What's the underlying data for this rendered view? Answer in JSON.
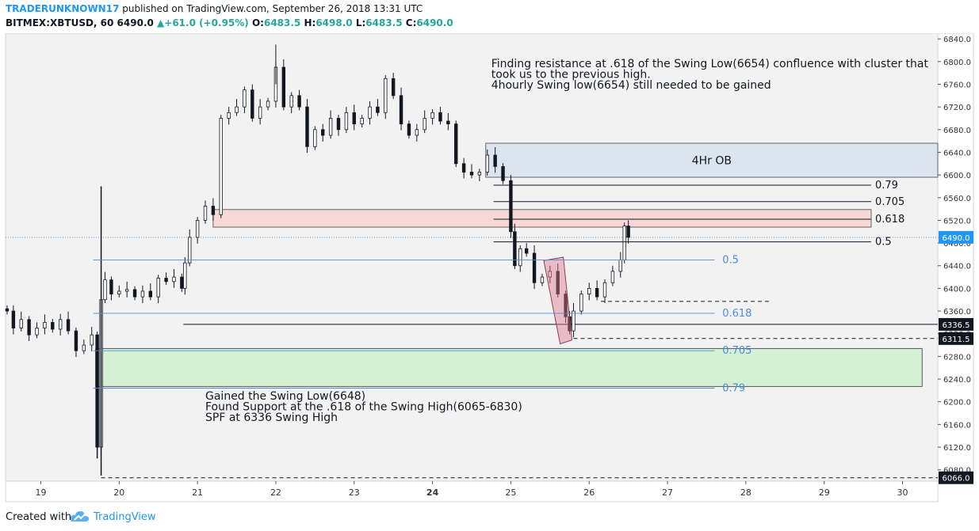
{
  "header": {
    "author": "TRADERUNKNOWN17",
    "published_text": "published on TradingView.com, September 26, 2018 13:31 UTC",
    "symbol": "BITMEX:XBTUSD, 60",
    "last": "6490.0",
    "change": "+61.0 (+0.95%)",
    "o_label": "O:",
    "o": "6483.5",
    "h_label": "H:",
    "h": "6498.0",
    "l_label": "L:",
    "l": "6483.5",
    "c_label": "C:",
    "c": "6490.0"
  },
  "footer": {
    "created_with": "Created with",
    "brand": "TradingView"
  },
  "colors": {
    "up": "#26a69a",
    "down": "#131722",
    "author": "#2196f3",
    "fib_blue": "#4f8bdc",
    "ob_fill": "#dce4f0",
    "red_fill": "#f8d7d7",
    "green_fill": "#d4f1d4",
    "price_tag": "#2196f3"
  },
  "chart_data": {
    "type": "candlestick",
    "title": "BITMEX:XBTUSD, 60",
    "ylim": [
      6060,
      6850
    ],
    "y_ticks": [
      6080,
      6120,
      6160,
      6200,
      6240,
      6280,
      6320,
      6360,
      6400,
      6440,
      6480,
      6520,
      6560,
      6600,
      6640,
      6680,
      6720,
      6760,
      6800,
      6840
    ],
    "x_ticks": [
      {
        "label": "19",
        "day": 19
      },
      {
        "label": "20",
        "day": 20
      },
      {
        "label": "21",
        "day": 21
      },
      {
        "label": "22",
        "day": 22
      },
      {
        "label": "23",
        "day": 23
      },
      {
        "label": "24",
        "day": 24,
        "bold": true
      },
      {
        "label": "25",
        "day": 25
      },
      {
        "label": "26",
        "day": 26
      },
      {
        "label": "27",
        "day": 27
      },
      {
        "label": "28",
        "day": 28
      },
      {
        "label": "29",
        "day": 29
      },
      {
        "label": "30",
        "day": 30
      }
    ],
    "x_range_days": [
      18.55,
      30.45
    ],
    "price_tags": [
      {
        "label": "6490.0",
        "value": 6490,
        "style": "blue"
      },
      {
        "label": "6336.5",
        "value": 6336.5,
        "style": "dark"
      },
      {
        "label": "6311.5",
        "value": 6311.5,
        "style": "dark"
      },
      {
        "label": "6066.0",
        "value": 6066,
        "style": "dark"
      }
    ],
    "zones": [
      {
        "name": "4Hr OB",
        "x1": 24.68,
        "x2": 30.45,
        "y1": 6596,
        "y2": 6656,
        "kind": "ob"
      },
      {
        "name": "",
        "x1": 21.2,
        "x2": 29.6,
        "y1": 6508,
        "y2": 6539,
        "kind": "red"
      },
      {
        "name": "",
        "x1": 19.7,
        "x2": 30.25,
        "y1": 6227,
        "y2": 6294,
        "kind": "green"
      }
    ],
    "zone_labels": [
      "4Hr OB"
    ],
    "fib_black": [
      {
        "label": "0.79",
        "value": 6582
      },
      {
        "label": "0.705",
        "value": 6553
      },
      {
        "label": "0.618",
        "value": 6522
      },
      {
        "label": "0.5",
        "value": 6482
      }
    ],
    "fib_blue": [
      {
        "label": "0.5",
        "value": 6450
      },
      {
        "label": "0.618",
        "value": 6356
      },
      {
        "label": "0.705",
        "value": 6290
      },
      {
        "label": "0.79",
        "value": 6224
      }
    ],
    "horizontal_lines": [
      {
        "value": 6336.5,
        "x1": 20.82,
        "style": "solid"
      },
      {
        "value": 6311.5,
        "x1": 25.8,
        "style": "dashed"
      },
      {
        "value": 6066,
        "x1": 19.77,
        "style": "dashed"
      },
      {
        "value": 6377,
        "x1": 26.15,
        "x2": 28.3,
        "style": "dashed"
      }
    ],
    "annotations": [
      {
        "text": "Finding resistance at .618 of the Swing Low(6654) confluence with cluster that",
        "x": 24.75,
        "y": 6790
      },
      {
        "text": "took us to the previous high.",
        "x": 24.75,
        "y": 6771
      },
      {
        "text": "4hourly Swing low(6654) still needed to be gained",
        "x": 24.75,
        "y": 6752
      },
      {
        "text": "Gained the Swing Low(6648)",
        "x": 21.1,
        "y": 6204
      },
      {
        "text": "Found Support at the .618 of the Swing High(6065-6830)",
        "x": 21.1,
        "y": 6185
      },
      {
        "text": "SPF at 6336 Swing High",
        "x": 21.1,
        "y": 6166
      }
    ],
    "pattern_box": {
      "p1": [
        25.42,
        6449
      ],
      "p2": [
        25.67,
        6455
      ],
      "p3": [
        25.78,
        6309
      ],
      "p4": [
        25.63,
        6302
      ]
    },
    "series_close": [
      {
        "d": 18.57,
        "c": 6360
      },
      {
        "d": 18.65,
        "c": 6330
      },
      {
        "d": 18.75,
        "c": 6345
      },
      {
        "d": 18.85,
        "c": 6318
      },
      {
        "d": 18.95,
        "c": 6330
      },
      {
        "d": 19.05,
        "c": 6340
      },
      {
        "d": 19.15,
        "c": 6328
      },
      {
        "d": 19.25,
        "c": 6345
      },
      {
        "d": 19.35,
        "c": 6325
      },
      {
        "d": 19.45,
        "c": 6290
      },
      {
        "d": 19.55,
        "c": 6300
      },
      {
        "d": 19.65,
        "c": 6318
      },
      {
        "d": 19.72,
        "c": 6120
      },
      {
        "d": 19.77,
        "c": 6380
      },
      {
        "d": 19.82,
        "c": 6415
      },
      {
        "d": 19.9,
        "c": 6390
      },
      {
        "d": 20.0,
        "c": 6395
      },
      {
        "d": 20.1,
        "c": 6398
      },
      {
        "d": 20.2,
        "c": 6385
      },
      {
        "d": 20.3,
        "c": 6395
      },
      {
        "d": 20.4,
        "c": 6385
      },
      {
        "d": 20.5,
        "c": 6418
      },
      {
        "d": 20.6,
        "c": 6412
      },
      {
        "d": 20.7,
        "c": 6420
      },
      {
        "d": 20.8,
        "c": 6400
      },
      {
        "d": 20.84,
        "c": 6445
      },
      {
        "d": 20.9,
        "c": 6490
      },
      {
        "d": 21.0,
        "c": 6520
      },
      {
        "d": 21.1,
        "c": 6545
      },
      {
        "d": 21.2,
        "c": 6530
      },
      {
        "d": 21.3,
        "c": 6700
      },
      {
        "d": 21.4,
        "c": 6710
      },
      {
        "d": 21.5,
        "c": 6720
      },
      {
        "d": 21.6,
        "c": 6750
      },
      {
        "d": 21.7,
        "c": 6700
      },
      {
        "d": 21.8,
        "c": 6720
      },
      {
        "d": 21.9,
        "c": 6730
      },
      {
        "d": 22.0,
        "c": 6790
      },
      {
        "d": 22.1,
        "c": 6720
      },
      {
        "d": 22.2,
        "c": 6740
      },
      {
        "d": 22.3,
        "c": 6720
      },
      {
        "d": 22.4,
        "c": 6650
      },
      {
        "d": 22.5,
        "c": 6680
      },
      {
        "d": 22.6,
        "c": 6670
      },
      {
        "d": 22.7,
        "c": 6700
      },
      {
        "d": 22.8,
        "c": 6680
      },
      {
        "d": 22.9,
        "c": 6710
      },
      {
        "d": 23.0,
        "c": 6690
      },
      {
        "d": 23.1,
        "c": 6700
      },
      {
        "d": 23.2,
        "c": 6720
      },
      {
        "d": 23.3,
        "c": 6710
      },
      {
        "d": 23.4,
        "c": 6770
      },
      {
        "d": 23.5,
        "c": 6740
      },
      {
        "d": 23.6,
        "c": 6690
      },
      {
        "d": 23.7,
        "c": 6670
      },
      {
        "d": 23.8,
        "c": 6680
      },
      {
        "d": 23.9,
        "c": 6700
      },
      {
        "d": 24.0,
        "c": 6710
      },
      {
        "d": 24.1,
        "c": 6695
      },
      {
        "d": 24.2,
        "c": 6690
      },
      {
        "d": 24.3,
        "c": 6620
      },
      {
        "d": 24.4,
        "c": 6605
      },
      {
        "d": 24.5,
        "c": 6600
      },
      {
        "d": 24.6,
        "c": 6605
      },
      {
        "d": 24.7,
        "c": 6635
      },
      {
        "d": 24.8,
        "c": 6615
      },
      {
        "d": 24.9,
        "c": 6590
      },
      {
        "d": 25.0,
        "c": 6500
      },
      {
        "d": 25.05,
        "c": 6440
      },
      {
        "d": 25.12,
        "c": 6470
      },
      {
        "d": 25.2,
        "c": 6462
      },
      {
        "d": 25.3,
        "c": 6410
      },
      {
        "d": 25.4,
        "c": 6420
      },
      {
        "d": 25.5,
        "c": 6430
      },
      {
        "d": 25.6,
        "c": 6390
      },
      {
        "d": 25.7,
        "c": 6350
      },
      {
        "d": 25.75,
        "c": 6325
      },
      {
        "d": 25.8,
        "c": 6360
      },
      {
        "d": 25.9,
        "c": 6390
      },
      {
        "d": 26.0,
        "c": 6400
      },
      {
        "d": 26.1,
        "c": 6385
      },
      {
        "d": 26.2,
        "c": 6410
      },
      {
        "d": 26.3,
        "c": 6430
      },
      {
        "d": 26.4,
        "c": 6450
      },
      {
        "d": 26.45,
        "c": 6510
      },
      {
        "d": 26.5,
        "c": 6490
      }
    ]
  }
}
